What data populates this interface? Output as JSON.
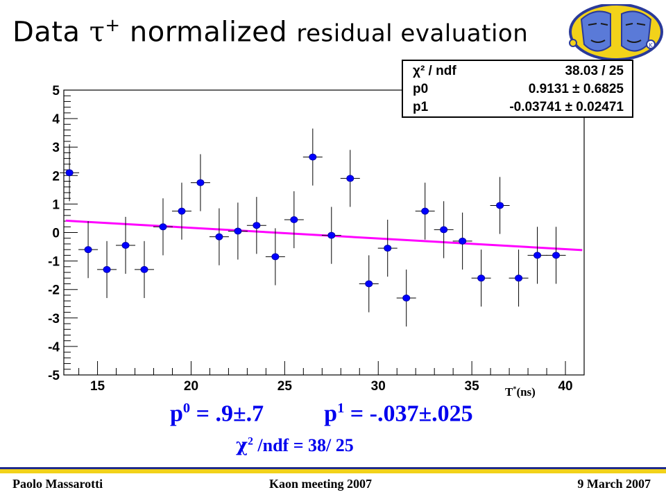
{
  "title": {
    "prefix": "Data",
    "tau": "τ",
    "sup": "+",
    "word1": "normalized",
    "word2": "residual evaluation"
  },
  "stats_box": {
    "rows": [
      {
        "key": "χ² / ndf",
        "value": "38.03 / 25"
      },
      {
        "key": "p0",
        "value": "0.9131 ± 0.6825"
      },
      {
        "key": "p1",
        "value": "-0.03741 ± 0.02471"
      }
    ]
  },
  "fit_summary": {
    "p0_label": "p",
    "p0_sup": "0",
    "p0_value": " = .9±.7",
    "p1_label": "p",
    "p1_sup": "1",
    "p1_value": " = -.037±.025",
    "chi_symbol": "χ",
    "chi_sup": "2",
    "chi_value": " /ndf = 38/ 25"
  },
  "footer": {
    "left": "Paolo Massarotti",
    "center": "Kaon meeting 2007",
    "right": "9 March 2007"
  },
  "colors": {
    "points": "#0000ff",
    "fit_line": "#ff00ff",
    "text_blue": "#0000ee",
    "logo_blue": "#2a3a9a",
    "logo_yellow": "#f2d21a"
  },
  "chart_data": {
    "type": "scatter",
    "title": "",
    "xlabel": "T*(ns)",
    "ylabel": "",
    "xlim": [
      13.2,
      41.0
    ],
    "ylim": [
      -5,
      5
    ],
    "xticks": [
      15,
      20,
      25,
      30,
      35,
      40
    ],
    "yticks": [
      -5,
      -4,
      -3,
      -2,
      -1,
      0,
      1,
      2,
      3,
      4,
      5
    ],
    "x_unit_label_main": "T",
    "x_unit_label_sup": "*",
    "x_unit_label_rest": "(ns)",
    "series": [
      {
        "x": [
          13.5,
          14.5,
          15.5,
          16.5,
          17.5,
          18.5,
          19.5,
          20.5,
          21.5,
          22.5,
          23.5,
          24.5,
          25.5,
          26.5,
          27.5,
          28.5,
          29.5,
          30.5,
          31.5,
          32.5,
          33.5,
          34.5,
          35.5,
          36.5,
          37.5,
          38.5,
          39.5
        ],
        "y": [
          2.1,
          -0.6,
          -1.3,
          -0.45,
          -1.3,
          0.2,
          0.75,
          1.75,
          -0.15,
          0.05,
          0.25,
          -0.85,
          0.45,
          2.65,
          -0.1,
          1.9,
          -1.8,
          -0.55,
          -2.3,
          0.75,
          0.1,
          -0.3,
          -1.6,
          0.95,
          -1.6,
          -0.8,
          -0.8
        ],
        "yerr": 1.0
      }
    ],
    "fit": {
      "p0": 0.9131,
      "p1": -0.03741
    }
  }
}
